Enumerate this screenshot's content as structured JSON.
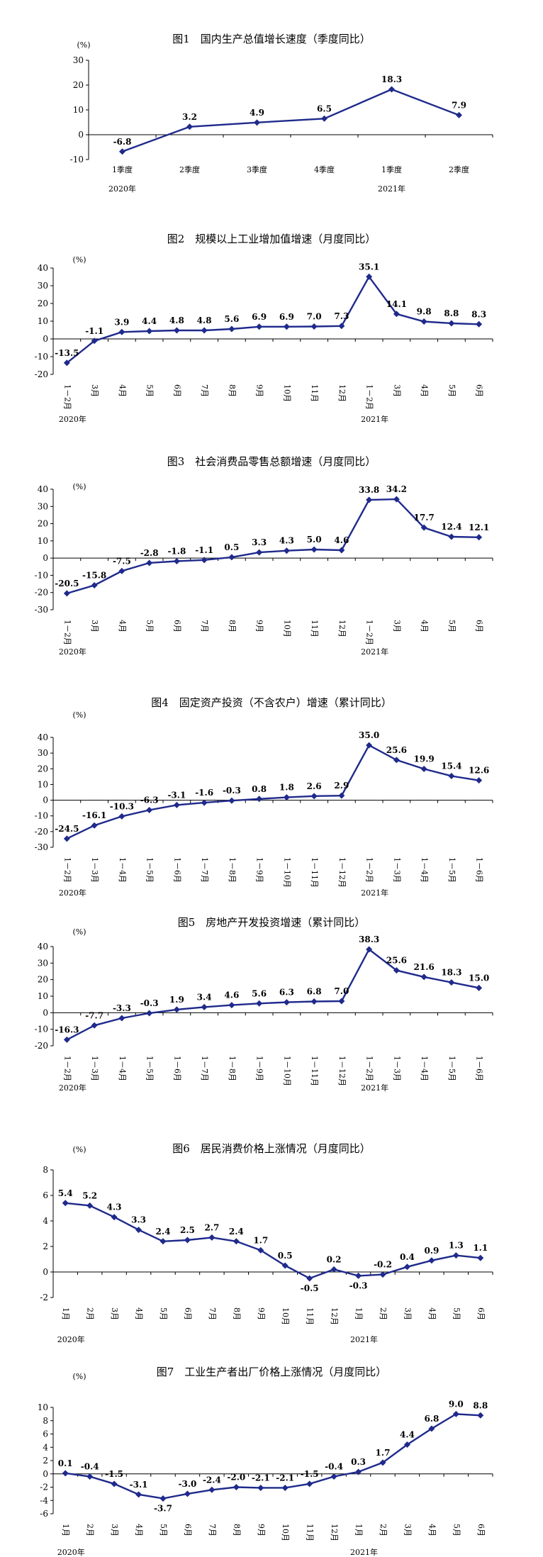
{
  "colors": {
    "series": "#1f2a8c",
    "axis": "#000000"
  },
  "chart_data": [
    {
      "type": "line",
      "title": "图1　国内生产总值增长速度（季度同比）",
      "unit": "(%)",
      "ylim": [
        -10,
        30
      ],
      "yticks": [
        -10,
        0,
        10,
        20,
        30
      ],
      "categories": [
        "1季度",
        "2季度",
        "3季度",
        "4季度",
        "1季度",
        "2季度"
      ],
      "years": [
        {
          "label": "2020年",
          "index": 0
        },
        {
          "label": "2021年",
          "index": 4
        }
      ],
      "series": [
        {
          "values": [
            -6.8,
            3.2,
            4.9,
            6.5,
            18.3,
            7.9
          ]
        }
      ],
      "labels": [
        "-6.8",
        "3.2",
        "4.9",
        "6.5",
        "18.3",
        "7.9"
      ]
    },
    {
      "type": "line",
      "title": "图2　规模以上工业增加值增速（月度同比）",
      "unit": "(%)",
      "ylim": [
        -20,
        40
      ],
      "yticks": [
        -20,
        -10,
        0,
        10,
        20,
        30,
        40
      ],
      "categories": [
        "1－2月",
        "3月",
        "4月",
        "5月",
        "6月",
        "7月",
        "8月",
        "9月",
        "10月",
        "11月",
        "12月",
        "1－2月",
        "3月",
        "4月",
        "5月",
        "6月"
      ],
      "years": [
        {
          "label": "2020年",
          "index": 0
        },
        {
          "label": "2021年",
          "index": 11
        }
      ],
      "series": [
        {
          "values": [
            -13.5,
            -1.1,
            3.9,
            4.4,
            4.8,
            4.8,
            5.6,
            6.9,
            6.9,
            7.0,
            7.3,
            35.1,
            14.1,
            9.8,
            8.8,
            8.3
          ]
        }
      ],
      "labels": [
        "-13.5",
        "-1.1",
        "3.9",
        "4.4",
        "4.8",
        "4.8",
        "5.6",
        "6.9",
        "6.9",
        "7.0",
        "7.3",
        "35.1",
        "14.1",
        "9.8",
        "8.8",
        "8.3"
      ]
    },
    {
      "type": "line",
      "title": "图3　社会消费品零售总额增速（月度同比）",
      "unit": "(%)",
      "ylim": [
        -30,
        40
      ],
      "yticks": [
        -30,
        -20,
        -10,
        0,
        10,
        20,
        30,
        40
      ],
      "categories": [
        "1－2月",
        "3月",
        "4月",
        "5月",
        "6月",
        "7月",
        "8月",
        "9月",
        "10月",
        "11月",
        "12月",
        "1－2月",
        "3月",
        "4月",
        "5月",
        "6月"
      ],
      "years": [
        {
          "label": "2020年",
          "index": 0
        },
        {
          "label": "2021年",
          "index": 11
        }
      ],
      "series": [
        {
          "values": [
            -20.5,
            -15.8,
            -7.5,
            -2.8,
            -1.8,
            -1.1,
            0.5,
            3.3,
            4.3,
            5.0,
            4.6,
            33.8,
            34.2,
            17.7,
            12.4,
            12.1
          ]
        }
      ],
      "labels": [
        "-20.5",
        "-15.8",
        "-7.5",
        "-2.8",
        "-1.8",
        "-1.1",
        "0.5",
        "3.3",
        "4.3",
        "5.0",
        "4.6",
        "33.8",
        "34.2",
        "17.7",
        "12.4",
        "12.1"
      ]
    },
    {
      "type": "line",
      "title": "图4　固定资产投资（不含农户）增速（累计同比）",
      "unit": "(%)",
      "ylim": [
        -30,
        40
      ],
      "yticks": [
        -30,
        -20,
        -10,
        0,
        10,
        20,
        30,
        40
      ],
      "categories": [
        "1－2月",
        "1－3月",
        "1－4月",
        "1－5月",
        "1－6月",
        "1－7月",
        "1－8月",
        "1－9月",
        "1－10月",
        "1－11月",
        "1－12月",
        "1－2月",
        "1－3月",
        "1－4月",
        "1－5月",
        "1－6月"
      ],
      "years": [
        {
          "label": "2020年",
          "index": 0
        },
        {
          "label": "2021年",
          "index": 11
        }
      ],
      "series": [
        {
          "values": [
            -24.5,
            -16.1,
            -10.3,
            -6.3,
            -3.1,
            -1.6,
            -0.3,
            0.8,
            1.8,
            2.6,
            2.9,
            35.0,
            25.6,
            19.9,
            15.4,
            12.6
          ]
        }
      ],
      "labels": [
        "-24.5",
        "-16.1",
        "-10.3",
        "-6.3",
        "-3.1",
        "-1.6",
        "-0.3",
        "0.8",
        "1.8",
        "2.6",
        "2.9",
        "35.0",
        "25.6",
        "19.9",
        "15.4",
        "12.6"
      ]
    },
    {
      "type": "line",
      "title": "图5　房地产开发投资增速（累计同比）",
      "unit": "(%)",
      "ylim": [
        -20,
        40
      ],
      "yticks": [
        -20,
        -10,
        0,
        10,
        20,
        30,
        40
      ],
      "categories": [
        "1－2月",
        "1－3月",
        "1－4月",
        "1－5月",
        "1－6月",
        "1－7月",
        "1－8月",
        "1－9月",
        "1－10月",
        "1－11月",
        "1－12月",
        "1－2月",
        "1－3月",
        "1－4月",
        "1－5月",
        "1－6月"
      ],
      "years": [
        {
          "label": "2020年",
          "index": 0
        },
        {
          "label": "2021年",
          "index": 11
        }
      ],
      "series": [
        {
          "values": [
            -16.3,
            -7.7,
            -3.3,
            -0.3,
            1.9,
            3.4,
            4.6,
            5.6,
            6.3,
            6.8,
            7.0,
            38.3,
            25.6,
            21.6,
            18.3,
            15.0
          ]
        }
      ],
      "labels": [
        "-16.3",
        "-7.7",
        "-3.3",
        "-0.3",
        "1.9",
        "3.4",
        "4.6",
        "5.6",
        "6.3",
        "6.8",
        "7.0",
        "38.3",
        "25.6",
        "21.6",
        "18.3",
        "15.0"
      ]
    },
    {
      "type": "line",
      "title": "图6　居民消费价格上涨情况（月度同比）",
      "unit": "(%)",
      "ylim": [
        -2,
        8
      ],
      "yticks": [
        -2,
        0,
        2,
        4,
        6,
        8
      ],
      "categories": [
        "1月",
        "2月",
        "3月",
        "4月",
        "5月",
        "6月",
        "7月",
        "8月",
        "9月",
        "10月",
        "11月",
        "12月",
        "1月",
        "2月",
        "3月",
        "4月",
        "5月",
        "6月"
      ],
      "years": [
        {
          "label": "2020年",
          "index": 0
        },
        {
          "label": "2021年",
          "index": 12
        }
      ],
      "series": [
        {
          "values": [
            5.4,
            5.2,
            4.3,
            3.3,
            2.4,
            2.5,
            2.7,
            2.4,
            1.7,
            0.5,
            -0.5,
            0.2,
            -0.3,
            -0.2,
            0.4,
            0.9,
            1.3,
            1.1
          ]
        }
      ],
      "labels": [
        "5.4",
        "5.2",
        "4.3",
        "3.3",
        "2.4",
        "2.5",
        "2.7",
        "2.4",
        "1.7",
        "0.5",
        "-0.5",
        "0.2",
        "-0.3",
        "-0.2",
        "0.4",
        "0.9",
        "1.3",
        "1.1"
      ]
    },
    {
      "type": "line",
      "title": "图7　工业生产者出厂价格上涨情况（月度同比）",
      "unit": "(%)",
      "ylim": [
        -6,
        10
      ],
      "yticks": [
        -6,
        -4,
        -2,
        0,
        2,
        4,
        6,
        8,
        10
      ],
      "categories": [
        "1月",
        "2月",
        "3月",
        "4月",
        "5月",
        "6月",
        "7月",
        "8月",
        "9月",
        "10月",
        "11月",
        "12月",
        "1月",
        "2月",
        "3月",
        "4月",
        "5月",
        "6月"
      ],
      "years": [
        {
          "label": "2020年",
          "index": 0
        },
        {
          "label": "2021年",
          "index": 12
        }
      ],
      "series": [
        {
          "values": [
            0.1,
            -0.4,
            -1.5,
            -3.1,
            -3.7,
            -3.0,
            -2.4,
            -2.0,
            -2.1,
            -2.1,
            -1.5,
            -0.4,
            0.3,
            1.7,
            4.4,
            6.8,
            9.0,
            8.8
          ]
        }
      ],
      "labels": [
        "0.1",
        "-0.4",
        "-1.5",
        "-3.1",
        "-3.7",
        "-3.0",
        "-2.4",
        "-2.0",
        "-2.1",
        "-2.1",
        "-1.5",
        "-0.4",
        "0.3",
        "1.7",
        "4.4",
        "6.8",
        "9.0",
        "8.8"
      ]
    }
  ]
}
